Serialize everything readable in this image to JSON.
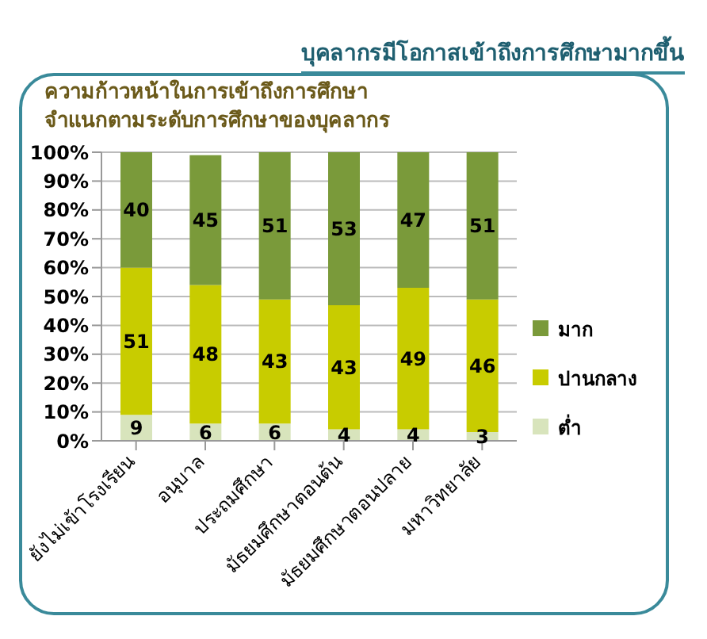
{
  "chart_data": {
    "type": "bar",
    "title": "บุคลากรมีโอกาสเข้าถึงการศึกษามากขึ้น",
    "subtitle": "ความก้าวหน้าในการเข้าถึงการศึกษา จำแนกตามระดับการศึกษาของบุคลากร",
    "categories": [
      "ยังไม่เข้าโรงเรียน",
      "อนุบาล",
      "ประถมศึกษา",
      "มัธยมศึกษาตอนต้น",
      "มัธยมศึกษาตอนปลาย",
      "มหาวิทยาลัย"
    ],
    "stacked": true,
    "data_labels": true,
    "legend": "right",
    "grid": "y",
    "series": [
      {
        "name": "ต่ำ",
        "color": "#d8e4bc",
        "values": [
          9,
          6,
          6,
          4,
          4,
          3
        ]
      },
      {
        "name": "ปานกลาง",
        "color": "#c8cc00",
        "values": [
          51,
          48,
          43,
          43,
          49,
          46
        ]
      },
      {
        "name": "มาก",
        "color": "#7a9a3a",
        "values": [
          40,
          45,
          51,
          53,
          47,
          51
        ]
      }
    ],
    "ylim": [
      0,
      100
    ],
    "yticks": [
      {
        "value": 0,
        "label": "0%"
      },
      {
        "value": 10,
        "label": "10%"
      },
      {
        "value": 20,
        "label": "20%"
      },
      {
        "value": 30,
        "label": "30%"
      },
      {
        "value": 40,
        "label": "40%"
      },
      {
        "value": 50,
        "label": "50%"
      },
      {
        "value": 60,
        "label": "60%"
      },
      {
        "value": 70,
        "label": "70%"
      },
      {
        "value": 80,
        "label": "80%"
      },
      {
        "value": 90,
        "label": "90%"
      },
      {
        "value": 100,
        "label": "100%"
      }
    ]
  }
}
